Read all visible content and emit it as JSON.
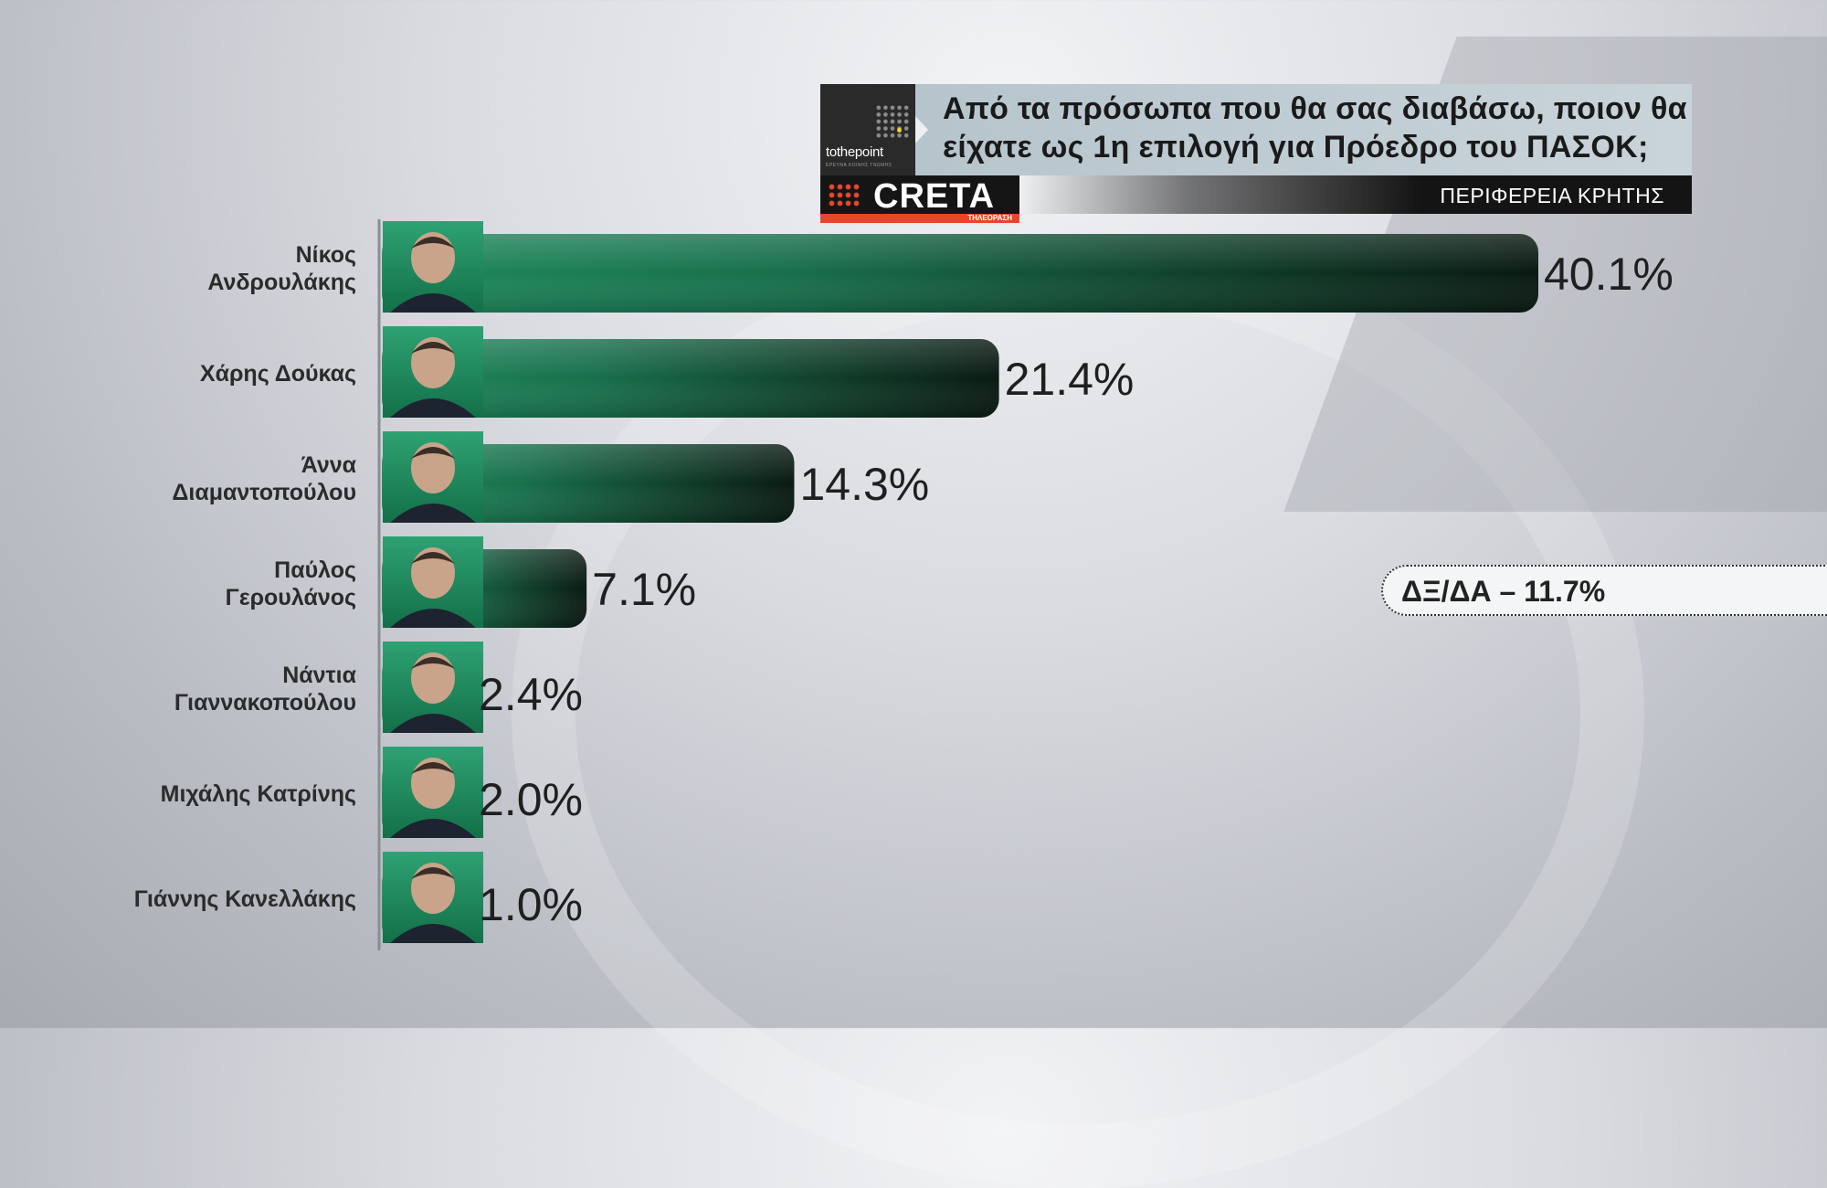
{
  "header": {
    "logo_text": "tothepoint",
    "logo_subtext": "ΕΡΕΥΝΑ ΚΟΙΝΗΣ ΓΝΩΜΗΣ",
    "question_line1": "Από τα πρόσωπα που θα σας διαβάσω, ποιον θα",
    "question_line2": "είχατε ως 1η επιλογή για Πρόεδρο του ΠΑΣΟΚ;",
    "channel_name": "CRETA",
    "channel_sub": "ΤΗΛΕΟΡΑΣΗ",
    "region": "ΠΕΡΙΦΕΡΕΙΑ ΚΡΗΤΗΣ"
  },
  "margin_note": "ΔΞ/ΔΑ – 11.7%",
  "colors": {
    "bar_light": "#1f8a5e",
    "bar_dark": "#0a1a12",
    "accent_orange": "#e8462a"
  },
  "chart_data": {
    "type": "bar",
    "orientation": "horizontal",
    "categories": [
      [
        "Νίκος",
        "Ανδρουλάκης"
      ],
      [
        "Χάρης Δούκας"
      ],
      [
        "Άννα",
        "Διαμαντοπούλου"
      ],
      [
        "Παύλος",
        "Γερουλάνος"
      ],
      [
        "Νάντια",
        "Γιαννακοπούλου"
      ],
      [
        "Μιχάλης Κατρίνης"
      ],
      [
        "Γιάννης Κανελλάκης"
      ]
    ],
    "values": [
      40.1,
      21.4,
      14.3,
      7.1,
      2.4,
      2.0,
      1.0
    ],
    "value_labels": [
      "40.1%",
      "21.4%",
      "14.3%",
      "7.1%",
      "2.4%",
      "2.0%",
      "1.0%"
    ],
    "unit": "%",
    "xlim": [
      0,
      40.1
    ],
    "grid": false,
    "legend": "none"
  }
}
